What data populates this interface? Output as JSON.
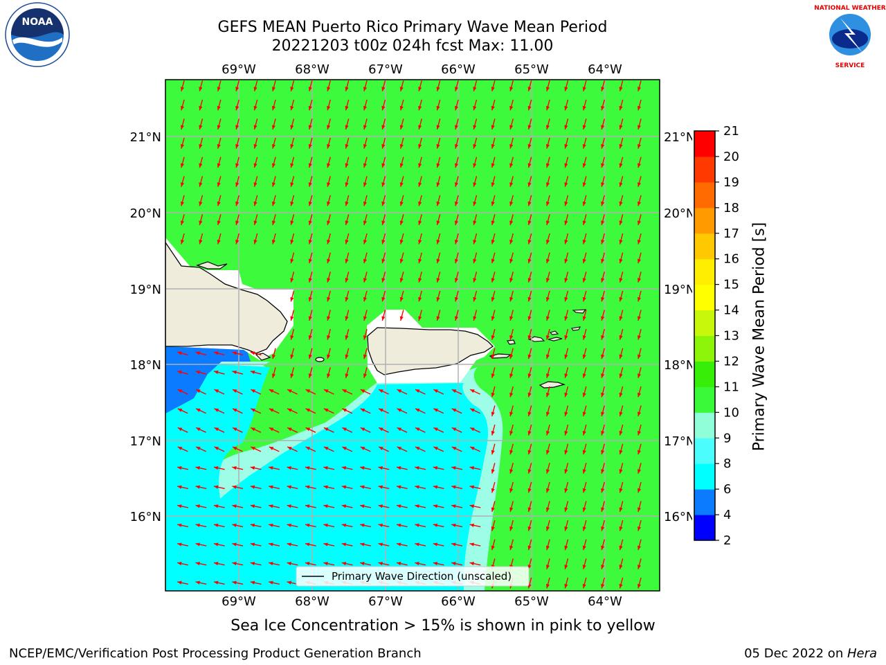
{
  "header": {
    "title_line1": "GEFS MEAN Puerto Rico Primary Wave Mean Period",
    "title_line2": "20221203 t00z 024h fcst   Max: 11.00"
  },
  "logos": {
    "left": "NOAA",
    "right": "NATIONAL WEATHER SERVICE"
  },
  "map": {
    "lon_labels": [
      "69°W",
      "68°W",
      "67°W",
      "66°W",
      "65°W",
      "64°W"
    ],
    "lat_labels": [
      "21°N",
      "20°N",
      "19°N",
      "18°N",
      "17°N",
      "16°N"
    ],
    "legend_label": "Primary Wave Direction (unscaled)",
    "colors": {
      "ocean_green": "#3dfa3d",
      "cyan": "#00ffff",
      "light_cyan": "#7ffff0",
      "blue": "#0b7bff",
      "land": "#efecdc",
      "arrow": "#ff0000"
    }
  },
  "colorbar": {
    "label": "Primary Wave Mean Period [s]",
    "ticks": [
      "2",
      "4",
      "6",
      "8",
      "9",
      "10",
      "11",
      "12",
      "13",
      "14",
      "15",
      "16",
      "17",
      "18",
      "19",
      "20",
      "21"
    ],
    "colors": [
      "#0000ff",
      "#0b7bff",
      "#00ffff",
      "#4cfdfd",
      "#90fed8",
      "#39f939",
      "#36ee07",
      "#8cf50a",
      "#c7f70b",
      "#ffff00",
      "#ffee00",
      "#ffc800",
      "#ff9a00",
      "#ff6b00",
      "#ff3a00",
      "#ff0000"
    ]
  },
  "caption": "Sea Ice Concentration > 15% is shown in pink to yellow",
  "footer": {
    "left": "NCEP/EMC/Verification Post Processing Product Generation Branch",
    "right_date": "05 Dec 2022 on ",
    "right_host": "Hera"
  }
}
